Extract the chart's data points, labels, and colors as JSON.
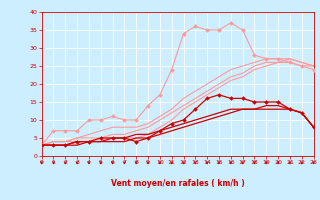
{
  "x": [
    0,
    1,
    2,
    3,
    4,
    5,
    6,
    7,
    8,
    9,
    10,
    11,
    12,
    13,
    14,
    15,
    16,
    17,
    18,
    19,
    20,
    21,
    22,
    23
  ],
  "series": [
    {
      "color": "#ff9999",
      "linewidth": 0.8,
      "marker": "D",
      "markersize": 2.0,
      "y": [
        3,
        7,
        7,
        7,
        10,
        10,
        11,
        10,
        10,
        14,
        17,
        24,
        34,
        36,
        35,
        35,
        37,
        35,
        28,
        27,
        27,
        26,
        25,
        24
      ]
    },
    {
      "color": "#ff9999",
      "linewidth": 0.8,
      "marker": null,
      "markersize": 0,
      "y": [
        3,
        4,
        4,
        4,
        4,
        5,
        5,
        5,
        5,
        6,
        8,
        10,
        13,
        15,
        17,
        19,
        21,
        22,
        24,
        25,
        26,
        26,
        25,
        25
      ]
    },
    {
      "color": "#ff9999",
      "linewidth": 0.8,
      "marker": null,
      "markersize": 0,
      "y": [
        3,
        4,
        4,
        5,
        5,
        5,
        6,
        6,
        7,
        8,
        10,
        12,
        14,
        16,
        18,
        20,
        22,
        23,
        25,
        26,
        26,
        27,
        26,
        25
      ]
    },
    {
      "color": "#ff9999",
      "linewidth": 0.8,
      "marker": null,
      "markersize": 0,
      "y": [
        3,
        4,
        4,
        5,
        6,
        7,
        8,
        8,
        8,
        9,
        11,
        13,
        16,
        18,
        20,
        22,
        24,
        25,
        26,
        27,
        27,
        27,
        26,
        25
      ]
    },
    {
      "color": "#cc0000",
      "linewidth": 0.9,
      "marker": "D",
      "markersize": 2.0,
      "y": [
        3,
        3,
        3,
        4,
        4,
        5,
        5,
        5,
        4,
        5,
        7,
        9,
        10,
        13,
        16,
        17,
        16,
        16,
        15,
        15,
        15,
        13,
        12,
        8
      ]
    },
    {
      "color": "#cc0000",
      "linewidth": 0.9,
      "marker": null,
      "markersize": 0,
      "y": [
        3,
        3,
        3,
        3,
        4,
        4,
        4,
        4,
        5,
        5,
        6,
        7,
        8,
        9,
        10,
        11,
        12,
        13,
        13,
        14,
        14,
        13,
        12,
        8
      ]
    },
    {
      "color": "#cc0000",
      "linewidth": 0.9,
      "marker": null,
      "markersize": 0,
      "y": [
        3,
        3,
        3,
        4,
        4,
        4,
        5,
        5,
        6,
        6,
        7,
        8,
        9,
        10,
        11,
        12,
        13,
        13,
        13,
        13,
        13,
        13,
        12,
        8
      ]
    }
  ],
  "ylim": [
    0,
    40
  ],
  "xlim": [
    0,
    23
  ],
  "yticks": [
    0,
    5,
    10,
    15,
    20,
    25,
    30,
    35,
    40
  ],
  "xticks": [
    0,
    1,
    2,
    3,
    4,
    5,
    6,
    7,
    8,
    9,
    10,
    11,
    12,
    13,
    14,
    15,
    16,
    17,
    18,
    19,
    20,
    21,
    22,
    23
  ],
  "xlabel": "Vent moyen/en rafales ( km/h )",
  "background_color": "#cceeff",
  "grid_color": "#ffffff",
  "tick_color": "#cc0000",
  "label_color": "#cc0000",
  "arrow_color": "#cc0000",
  "tick_fontsize": 4.5,
  "xlabel_fontsize": 5.5
}
